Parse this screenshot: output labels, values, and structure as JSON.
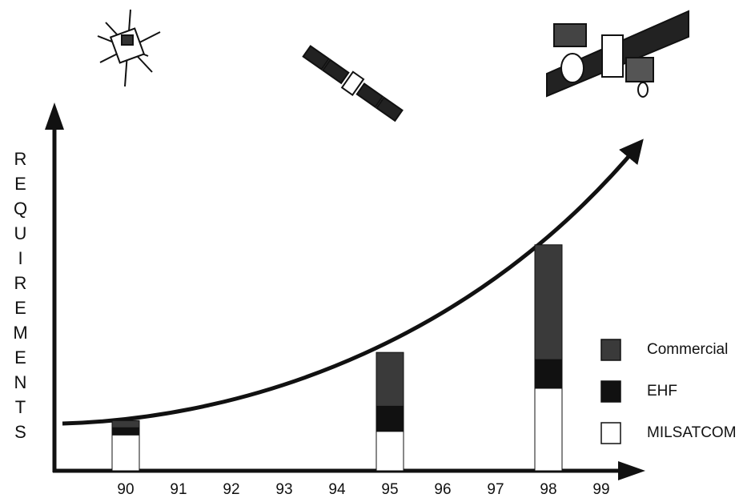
{
  "chart_data": {
    "type": "stacked_bar",
    "y_label": "REQUIREMENTS",
    "categories": [
      "90",
      "91",
      "92",
      "93",
      "94",
      "95",
      "96",
      "97",
      "98",
      "99"
    ],
    "series": [
      {
        "name": "MILSATCOM",
        "color": "#ffffff",
        "values": [
          10,
          null,
          null,
          null,
          null,
          11,
          null,
          null,
          23,
          null
        ]
      },
      {
        "name": "EHF",
        "color": "#111111",
        "values": [
          2,
          null,
          null,
          null,
          null,
          7,
          null,
          null,
          8,
          null
        ]
      },
      {
        "name": "Commercial",
        "color": "#3a3a3a",
        "values": [
          2,
          null,
          null,
          null,
          null,
          15,
          null,
          null,
          32,
          null
        ]
      }
    ],
    "ylim": [
      0,
      100
    ]
  }
}
